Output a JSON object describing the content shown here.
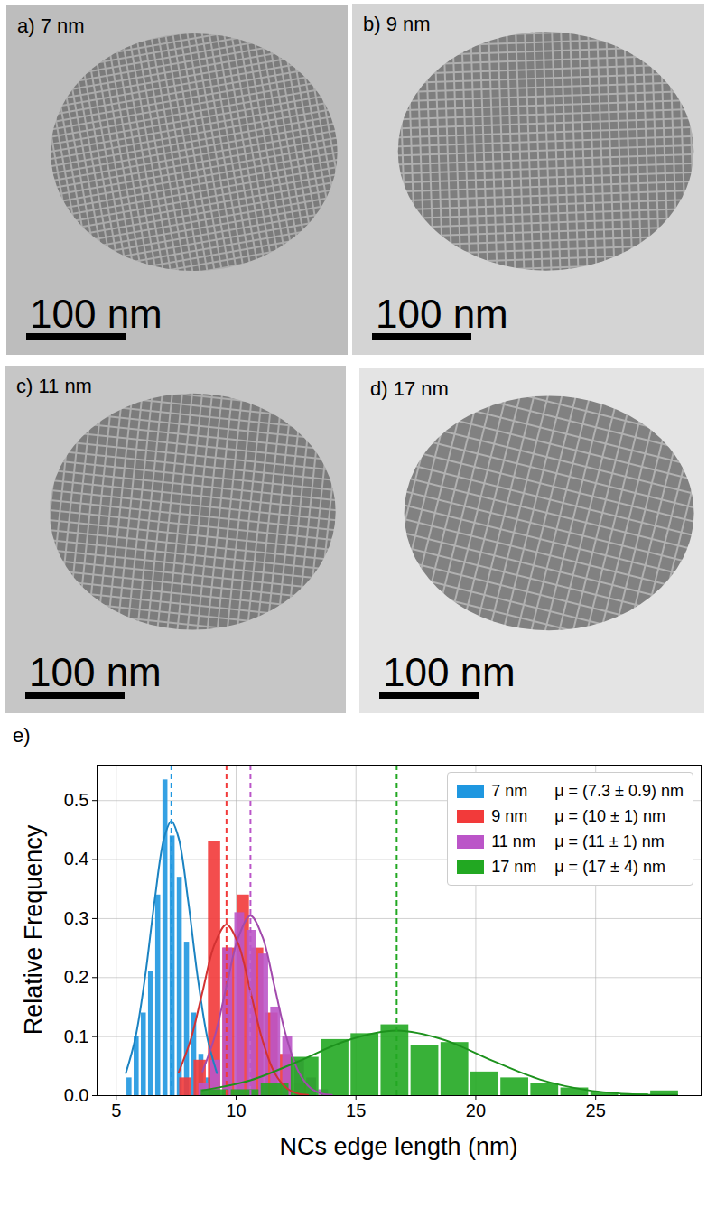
{
  "panels": [
    {
      "label": "a) 7 nm",
      "scale_bar": "100 nm"
    },
    {
      "label": "b) 9 nm",
      "scale_bar": "100 nm"
    },
    {
      "label": "c) 11 nm",
      "scale_bar": "100 nm"
    },
    {
      "label": "d) 17 nm",
      "scale_bar": "100 nm"
    }
  ],
  "chart_data": {
    "type": "histogram",
    "panel_label": "e)",
    "x_label": "NCs edge length (nm)",
    "y_label": "Relative Frequency",
    "xlim": [
      4.2,
      29.4
    ],
    "ylim": [
      0,
      0.56
    ],
    "xticks": [
      5,
      10,
      15,
      20,
      25
    ],
    "yticks": [
      {
        "value": 0,
        "label": "0.0"
      },
      0.1,
      0.2,
      0.3,
      0.4,
      0.5
    ],
    "grid": true,
    "legend": "upper right",
    "series": [
      {
        "name": "7 nm",
        "color": "#1f97e0",
        "legend_text": "μ = (7.3 ± 0.9) nm",
        "mean": 7.3,
        "bins": [
          5.4,
          5.7,
          6.0,
          6.3,
          6.6,
          6.9,
          7.2,
          7.5,
          7.8,
          8.1,
          8.4,
          8.7,
          9.0,
          9.3
        ],
        "values": [
          0.03,
          0.1,
          0.14,
          0.21,
          0.34,
          0.535,
          0.44,
          0.37,
          0.26,
          0.14,
          0.07,
          0.03,
          0.01
        ],
        "fit": {
          "x": [
            5.4,
            5.8,
            6.2,
            6.6,
            7.0,
            7.3,
            7.6,
            8.0,
            8.4,
            8.8,
            9.2
          ],
          "y": [
            0.038,
            0.098,
            0.2,
            0.33,
            0.437,
            0.465,
            0.437,
            0.33,
            0.2,
            0.098,
            0.038
          ]
        }
      },
      {
        "name": "9 nm",
        "color": "#f23a3a",
        "legend_text": "μ = (10 ± 1) nm",
        "mean": 9.6,
        "bins": [
          7.6,
          8.2,
          8.8,
          9.4,
          10.0,
          10.6,
          11.2,
          11.8,
          12.4,
          13.0
        ],
        "values": [
          0.03,
          0.06,
          0.43,
          0.25,
          0.34,
          0.25,
          0.14,
          0.07,
          0.02
        ],
        "fit": {
          "x": [
            7.6,
            8.1,
            8.6,
            9.1,
            9.6,
            10.1,
            10.6,
            11.1,
            11.6,
            12.1,
            12.6,
            13.0
          ],
          "y": [
            0.039,
            0.094,
            0.176,
            0.256,
            0.29,
            0.256,
            0.176,
            0.094,
            0.039,
            0.013,
            0.003,
            0.001
          ]
        }
      },
      {
        "name": "11 nm",
        "color": "#bb55c8",
        "legend_text": "μ = (11 ± 1) nm",
        "mean": 10.6,
        "bins": [
          8.4,
          8.9,
          9.4,
          9.9,
          10.4,
          10.9,
          11.4,
          11.9,
          12.4,
          12.9,
          13.4,
          13.9
        ],
        "values": [
          0.02,
          0.06,
          0.25,
          0.31,
          0.28,
          0.24,
          0.15,
          0.1,
          0.06,
          0.03,
          0.01
        ],
        "fit": {
          "x": [
            8.6,
            9.1,
            9.6,
            10.1,
            10.6,
            11.1,
            11.6,
            12.1,
            12.6,
            13.1,
            13.6,
            14.0
          ],
          "y": [
            0.041,
            0.099,
            0.185,
            0.269,
            0.305,
            0.269,
            0.185,
            0.099,
            0.041,
            0.013,
            0.003,
            0.001
          ]
        }
      },
      {
        "name": "17 nm",
        "color": "#22a822",
        "legend_text": "μ = (17 ± 4) nm",
        "mean": 16.7,
        "bins": [
          8.5,
          9.75,
          11.0,
          12.25,
          13.5,
          14.75,
          16.0,
          17.25,
          18.5,
          19.75,
          21.0,
          22.25,
          23.5,
          24.75,
          26.0,
          27.25,
          28.5
        ],
        "values": [
          0.01,
          0.01,
          0.02,
          0.065,
          0.095,
          0.105,
          0.12,
          0.085,
          0.09,
          0.04,
          0.03,
          0.02,
          0.013,
          0.005,
          0.003,
          0.008
        ],
        "fit": {
          "x": [
            8.6,
            10.6,
            12.6,
            14.6,
            16.7,
            18.7,
            20.7,
            22.7,
            24.7,
            26.7,
            28.4
          ],
          "y": [
            0.009,
            0.026,
            0.058,
            0.093,
            0.11,
            0.094,
            0.059,
            0.027,
            0.009,
            0.002,
            0.001
          ]
        }
      }
    ]
  }
}
